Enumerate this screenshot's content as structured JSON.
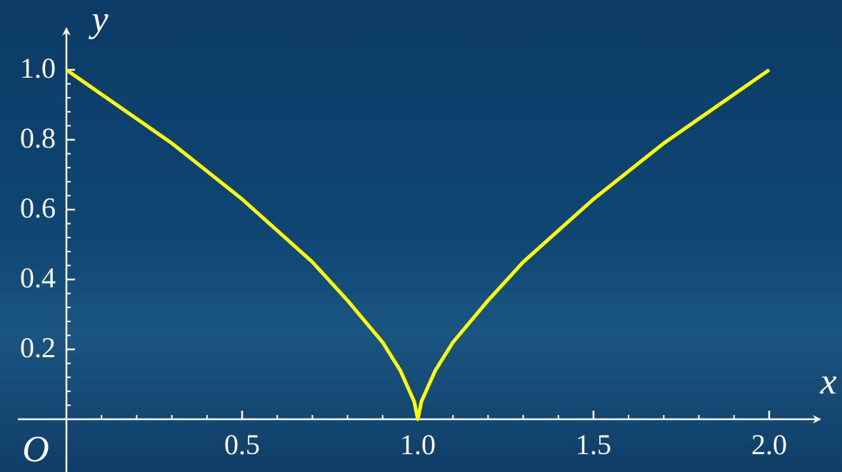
{
  "chart_data": {
    "type": "line",
    "x": [
      0,
      0.1,
      0.2,
      0.3,
      0.4,
      0.5,
      0.6,
      0.7,
      0.8,
      0.9,
      0.95,
      0.99,
      1,
      1.01,
      1.05,
      1.1,
      1.2,
      1.3,
      1.4,
      1.5,
      1.6,
      1.7,
      1.8,
      1.9,
      2
    ],
    "values": [
      1,
      0.93,
      0.86,
      0.79,
      0.71,
      0.63,
      0.54,
      0.45,
      0.34,
      0.22,
      0.14,
      0.05,
      0,
      0.05,
      0.14,
      0.22,
      0.34,
      0.45,
      0.54,
      0.63,
      0.71,
      0.79,
      0.86,
      0.93,
      1
    ],
    "color": "#ffff00",
    "xlabel": "x",
    "ylabel": "y",
    "origin_label": "O",
    "xlim": [
      0,
      2
    ],
    "ylim": [
      0,
      1
    ],
    "xticks": [
      0.5,
      {
        "value": 1,
        "label": "1.0"
      },
      1.5,
      {
        "value": 2,
        "label": "2.0"
      }
    ],
    "yticks": [
      0.2,
      0.4,
      0.6,
      0.8,
      {
        "value": 1,
        "label": "1.0"
      }
    ],
    "xminorticks": [
      0.1,
      0.2,
      0.3,
      0.4,
      0.6,
      0.7,
      0.8,
      0.9,
      1.1,
      1.2,
      1.3,
      1.4,
      1.6,
      1.7,
      1.8,
      1.9
    ],
    "yminorticks": [
      0.04,
      0.08,
      0.12,
      0.16,
      0.24,
      0.28,
      0.32,
      0.36,
      0.44,
      0.48,
      0.52,
      0.56,
      0.64,
      0.68,
      0.72,
      0.76,
      0.84,
      0.88,
      0.92,
      0.96
    ]
  }
}
